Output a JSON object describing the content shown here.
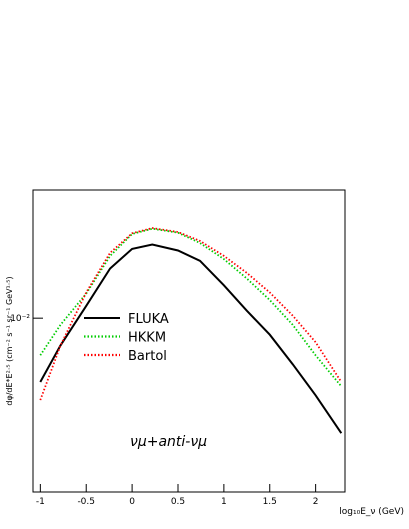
{
  "chart_data": {
    "type": "line",
    "x_label": "log₁₀E_ν (GeV)",
    "y_label": "dφ/dE*E²·⁵ (cm⁻² s⁻¹ sr⁻¹ GeV¹·⁵)",
    "annotation": "νμ+anti-νμ",
    "x": [
      -1,
      -0.78,
      -0.5,
      -0.24,
      0,
      0.22,
      0.5,
      0.74,
      1.0,
      1.25,
      1.5,
      1.75,
      2.0,
      2.28
    ],
    "series": [
      {
        "name": "FLUKA",
        "color": "#000000",
        "style": "solid",
        "values": [
          0.0061,
          0.0081,
          0.011,
          0.0147,
          0.0171,
          0.0177,
          0.0169,
          0.0156,
          0.0129,
          0.0106,
          0.0088,
          0.007,
          0.0055,
          0.0041
        ]
      },
      {
        "name": "HKKM",
        "color": "#00cc00",
        "style": "dotted",
        "values": [
          0.0075,
          0.0095,
          0.0121,
          0.0162,
          0.0192,
          0.02,
          0.0194,
          0.0179,
          0.0158,
          0.0136,
          0.0115,
          0.0095,
          0.0075,
          0.0059
        ]
      },
      {
        "name": "Bartol",
        "color": "#ff0000",
        "style": "dotted",
        "values": [
          0.0053,
          0.0081,
          0.0122,
          0.0166,
          0.0193,
          0.0201,
          0.0195,
          0.0182,
          0.0162,
          0.0142,
          0.0122,
          0.0102,
          0.0083,
          0.0061
        ]
      }
    ],
    "xlim": [
      -1.08,
      2.32
    ],
    "ylim": [
      0.0026,
      0.027
    ],
    "xticks": [
      -1,
      -0.5,
      0,
      0.5,
      1,
      1.5,
      2
    ],
    "yticks": [
      {
        "value": 0.01,
        "label": "10⁻²"
      }
    ],
    "y_scale": "log",
    "grid": false,
    "legend": "center-left"
  }
}
